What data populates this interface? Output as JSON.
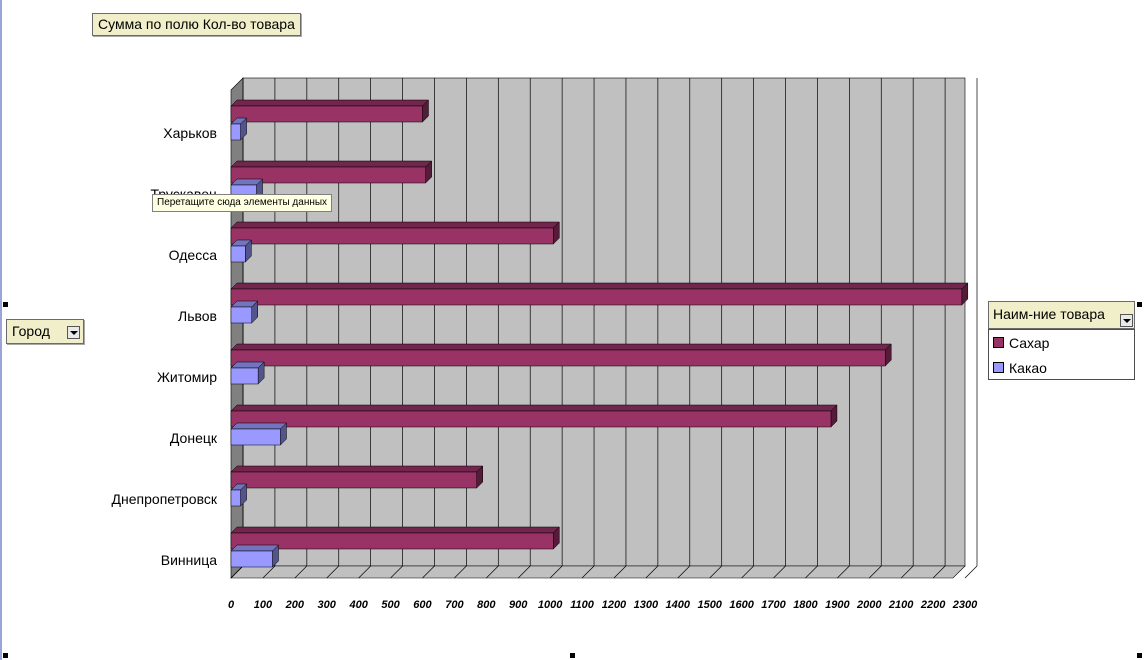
{
  "pivot": {
    "data_field_label": "Сумма по полю Кол-во товара",
    "row_field_label": "Город",
    "series_field_label": "Наим-ние товара",
    "drop_hint": "Перетащите сюда элементы данных"
  },
  "chart_data": {
    "type": "bar",
    "orientation": "horizontal",
    "style": "3d-clustered",
    "categories": [
      "Харьков",
      "Трускавец",
      "Одесса",
      "Львов",
      "Житомир",
      "Донецк",
      "Днепропетровск",
      "Винница"
    ],
    "series": [
      {
        "name": "Сахар",
        "color": "#993366",
        "values": [
          600,
          610,
          1010,
          2290,
          2050,
          1880,
          770,
          1010
        ]
      },
      {
        "name": "Какао",
        "color": "#9999ff",
        "values": [
          30,
          80,
          45,
          65,
          85,
          155,
          30,
          130
        ]
      }
    ],
    "xlim": [
      0,
      2300
    ],
    "xticks": [
      0,
      100,
      200,
      300,
      400,
      500,
      600,
      700,
      800,
      900,
      1000,
      1100,
      1200,
      1300,
      1400,
      1500,
      1600,
      1700,
      1800,
      1900,
      2000,
      2100,
      2200,
      2300
    ],
    "xlabel": "",
    "ylabel": "",
    "grid": true,
    "legend_position": "right",
    "wall_color": "#c0c0c0"
  }
}
